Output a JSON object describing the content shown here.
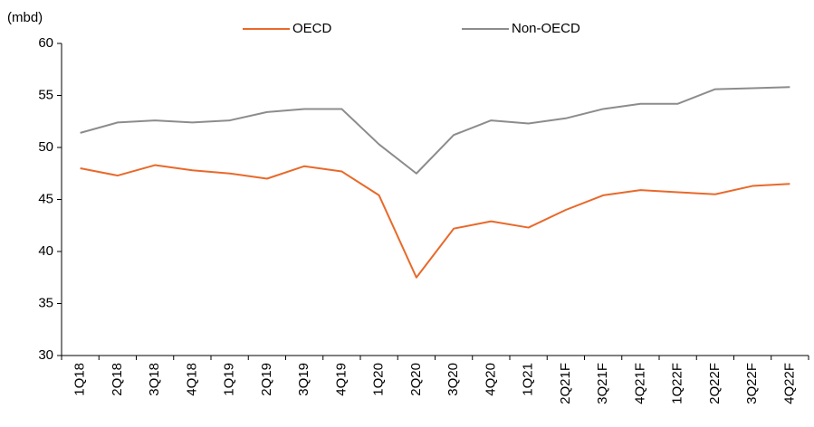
{
  "chart_data": {
    "type": "line",
    "y_label": "(mbd)",
    "categories": [
      "1Q18",
      "2Q18",
      "3Q18",
      "4Q18",
      "1Q19",
      "2Q19",
      "3Q19",
      "4Q19",
      "1Q20",
      "2Q20",
      "3Q20",
      "4Q20",
      "1Q21",
      "2Q21F",
      "3Q21F",
      "4Q21F",
      "1Q22F",
      "2Q22F",
      "3Q22F",
      "4Q22F"
    ],
    "series": [
      {
        "name": "OECD",
        "color": "#e8692a",
        "values": [
          48.0,
          47.3,
          48.3,
          47.8,
          47.5,
          47.0,
          48.2,
          47.7,
          45.4,
          37.5,
          42.2,
          42.9,
          42.3,
          44.0,
          45.4,
          45.9,
          45.7,
          45.5,
          46.3,
          46.5
        ]
      },
      {
        "name": "Non-OECD",
        "color": "#8c8c8c",
        "values": [
          51.4,
          52.4,
          52.6,
          52.4,
          52.6,
          53.4,
          53.7,
          53.7,
          50.3,
          47.5,
          51.2,
          52.6,
          52.3,
          52.8,
          53.7,
          54.2,
          54.2,
          55.6,
          55.7,
          55.8
        ]
      }
    ],
    "ylim": [
      30,
      60
    ],
    "yticks": [
      30,
      35,
      40,
      45,
      50,
      55,
      60
    ],
    "legend": "top",
    "grid": false
  }
}
